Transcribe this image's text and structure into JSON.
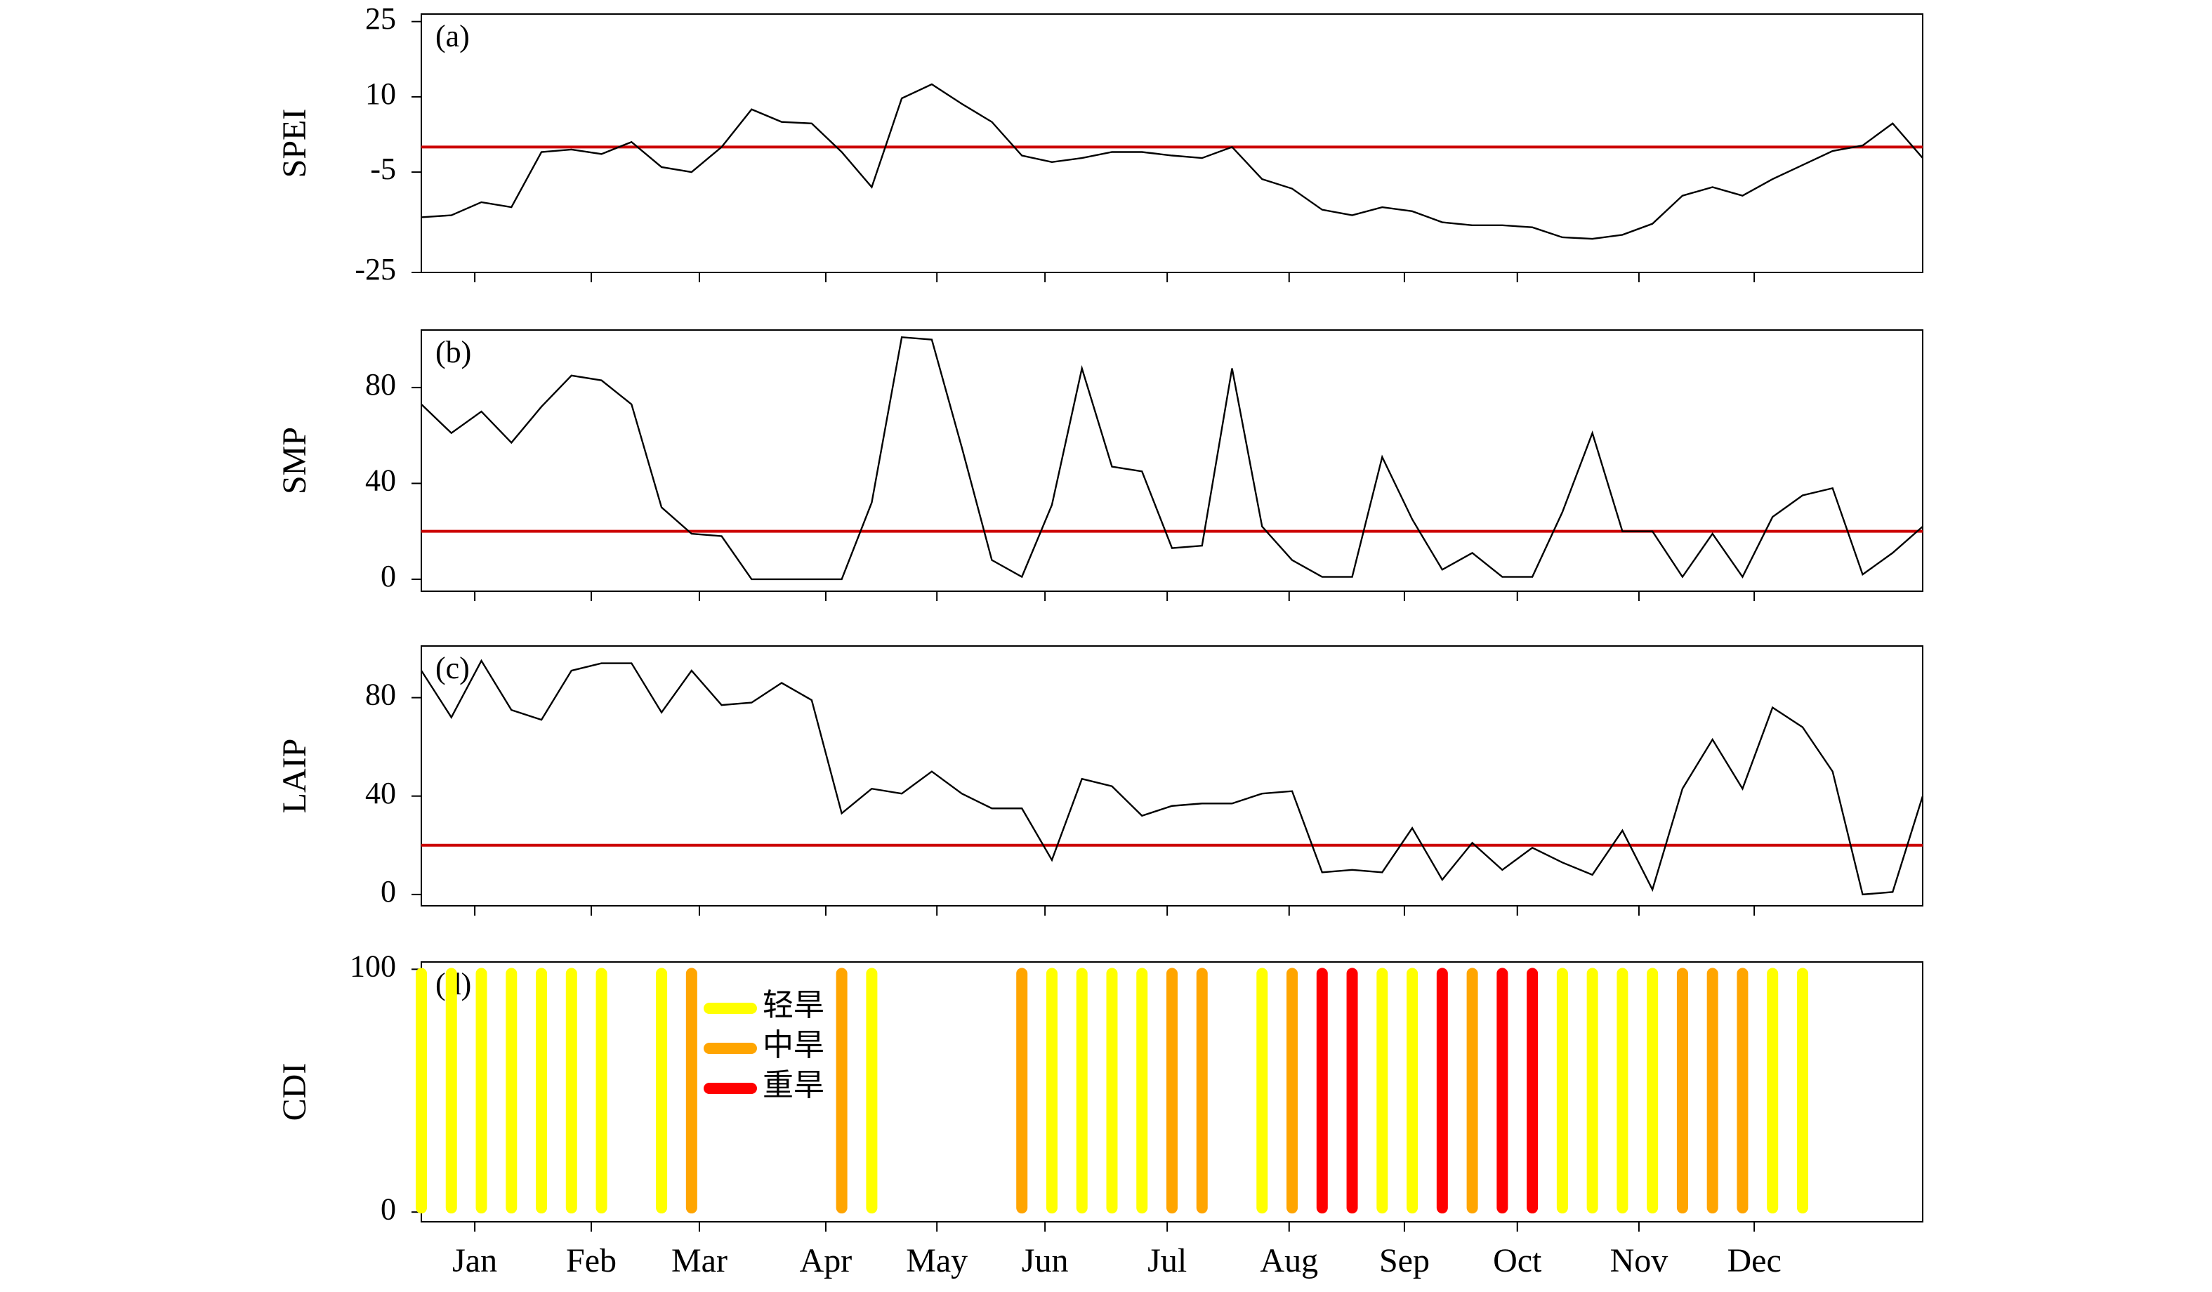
{
  "chart_data": [
    {
      "type": "line",
      "label": "(a)",
      "ylabel": "SPEI",
      "color": "#000000",
      "xlim": [
        0,
        50
      ],
      "ylim": [
        -25,
        26.5
      ],
      "yticks": [
        -25,
        -5,
        10,
        25
      ],
      "reference_line": 0,
      "reference_color": "#cc0000",
      "values": [
        -14,
        -13.6,
        -11,
        -12,
        -1,
        -0.5,
        -1.4,
        1,
        -4,
        -5,
        0,
        7.5,
        5,
        4.7,
        -1,
        -8,
        9.7,
        12.5,
        8.6,
        5,
        -1.7,
        -3,
        -2.2,
        -1,
        -1,
        -1.7,
        -2.2,
        0,
        -6.4,
        -8.3,
        -12.5,
        -13.6,
        -12,
        -12.8,
        -15,
        -15.6,
        -15.6,
        -16,
        -18,
        -18.3,
        -17.5,
        -15.3,
        -9.7,
        -8,
        -9.7,
        -6.4,
        -3.6,
        -0.8,
        0.3,
        4.7,
        -2.2
      ]
    },
    {
      "type": "line",
      "label": "(b)",
      "ylabel": "SMP",
      "color": "#000000",
      "xlim": [
        0,
        50
      ],
      "ylim": [
        -5,
        104
      ],
      "yticks": [
        0,
        40,
        80
      ],
      "reference_line": 20,
      "reference_color": "#cc0000",
      "values": [
        73,
        61,
        70,
        57,
        72,
        85,
        83,
        73,
        30,
        19,
        18,
        0,
        0,
        0,
        0,
        32,
        101,
        100,
        55,
        8,
        1,
        31,
        88,
        47,
        45,
        13,
        14,
        88,
        22,
        8,
        1,
        1,
        51,
        25,
        4,
        11,
        1,
        1,
        28,
        61,
        20,
        20,
        1,
        19,
        1,
        26,
        35,
        38,
        2,
        11,
        22
      ]
    },
    {
      "type": "line",
      "label": "(c)",
      "ylabel": "LAIP",
      "color": "#000000",
      "xlim": [
        0,
        50
      ],
      "ylim": [
        -4.6,
        101
      ],
      "yticks": [
        0,
        40,
        80
      ],
      "reference_line": 20,
      "reference_color": "#cc0000",
      "values": [
        91,
        72,
        95,
        75,
        71,
        91,
        94,
        94,
        74,
        91,
        77,
        78,
        86,
        79,
        33,
        43,
        41,
        50,
        41,
        35,
        35,
        14,
        47,
        44,
        32,
        36,
        37,
        37,
        41,
        42,
        9,
        10,
        9,
        27,
        6,
        21,
        10,
        19,
        13,
        8,
        26,
        2,
        43,
        63,
        43,
        76,
        68,
        50,
        0,
        1,
        40
      ]
    },
    {
      "type": "bar",
      "label": "(d)",
      "ylabel": "CDI",
      "xlim": [
        0,
        50
      ],
      "ylim": [
        -4,
        103
      ],
      "yticks": [
        0,
        100
      ],
      "xticks": [
        {
          "value": 1.78,
          "label": "Jan"
        },
        {
          "value": 5.66,
          "label": "Feb"
        },
        {
          "value": 9.26,
          "label": "Mar"
        },
        {
          "value": 13.47,
          "label": "Apr"
        },
        {
          "value": 17.17,
          "label": "May"
        },
        {
          "value": 20.77,
          "label": "Jun"
        },
        {
          "value": 24.84,
          "label": "Jul"
        },
        {
          "value": 28.9,
          "label": "Aug"
        },
        {
          "value": 32.74,
          "label": "Sep"
        },
        {
          "value": 36.5,
          "label": "Oct"
        },
        {
          "value": 40.55,
          "label": "Nov"
        },
        {
          "value": 44.39,
          "label": "Dec"
        }
      ],
      "series": [
        {
          "name": "轻旱",
          "color": "#ffff00",
          "x": [
            0,
            1,
            2,
            3,
            4,
            5,
            6,
            8,
            15,
            21,
            22,
            23,
            24,
            28,
            32,
            33,
            38,
            39,
            40,
            41,
            45,
            46
          ],
          "values": [
            100,
            100,
            100,
            100,
            100,
            100,
            100,
            100,
            100,
            100,
            100,
            100,
            100,
            100,
            100,
            100,
            100,
            100,
            100,
            100,
            100,
            100
          ]
        },
        {
          "name": "中旱",
          "color": "#ffa500",
          "x": [
            9,
            14,
            20,
            25,
            26,
            29,
            35,
            42,
            43,
            44
          ],
          "values": [
            100,
            100,
            100,
            100,
            100,
            100,
            100,
            100,
            100,
            100
          ]
        },
        {
          "name": "重旱",
          "color": "#ff0000",
          "x": [
            30,
            31,
            34,
            36,
            37
          ],
          "values": [
            100,
            100,
            100,
            100,
            100
          ]
        }
      ]
    }
  ]
}
